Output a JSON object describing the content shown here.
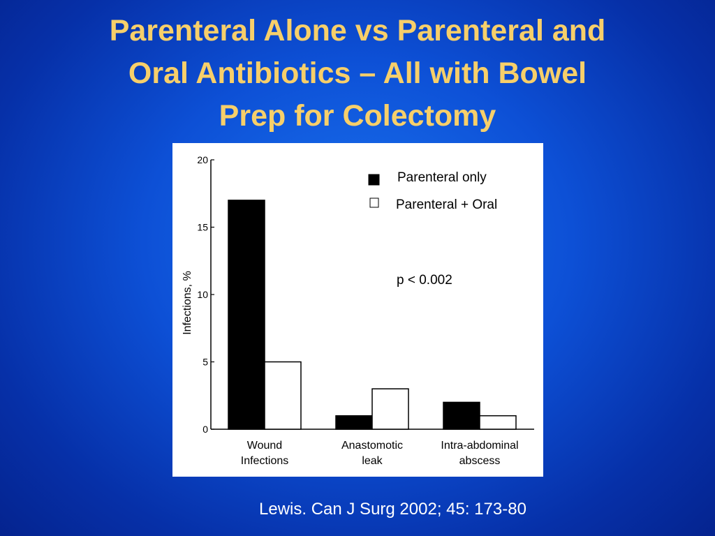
{
  "slide": {
    "title_lines": [
      "Parenteral Alone vs Parenteral and",
      "Oral Antibiotics – All with Bowel",
      "Prep for Colectomy"
    ],
    "citation": "Lewis.  Can J Surg 2002; 45: 173-80",
    "colors": {
      "title": "#f7cf6a",
      "background": "#0d50d6",
      "citation": "#ffffff"
    }
  },
  "chart_data": {
    "type": "bar",
    "categories": [
      [
        "Wound",
        "Infections"
      ],
      [
        "Anastomotic",
        "leak"
      ],
      [
        "Intra-abdominal",
        "abscess"
      ]
    ],
    "series": [
      {
        "name": "Parenteral only",
        "values": [
          17,
          1,
          2
        ],
        "color": "#000000"
      },
      {
        "name": "Parenteral + Oral",
        "values": [
          5,
          3,
          1
        ],
        "color": "#ffffff"
      }
    ],
    "ylabel": "Infections, %",
    "ylim": [
      0,
      20
    ],
    "yticks": [
      "0",
      "5",
      "10",
      "15",
      "20"
    ],
    "annotation": "p < 0.002",
    "legend_position": "top-right",
    "grid": false
  }
}
